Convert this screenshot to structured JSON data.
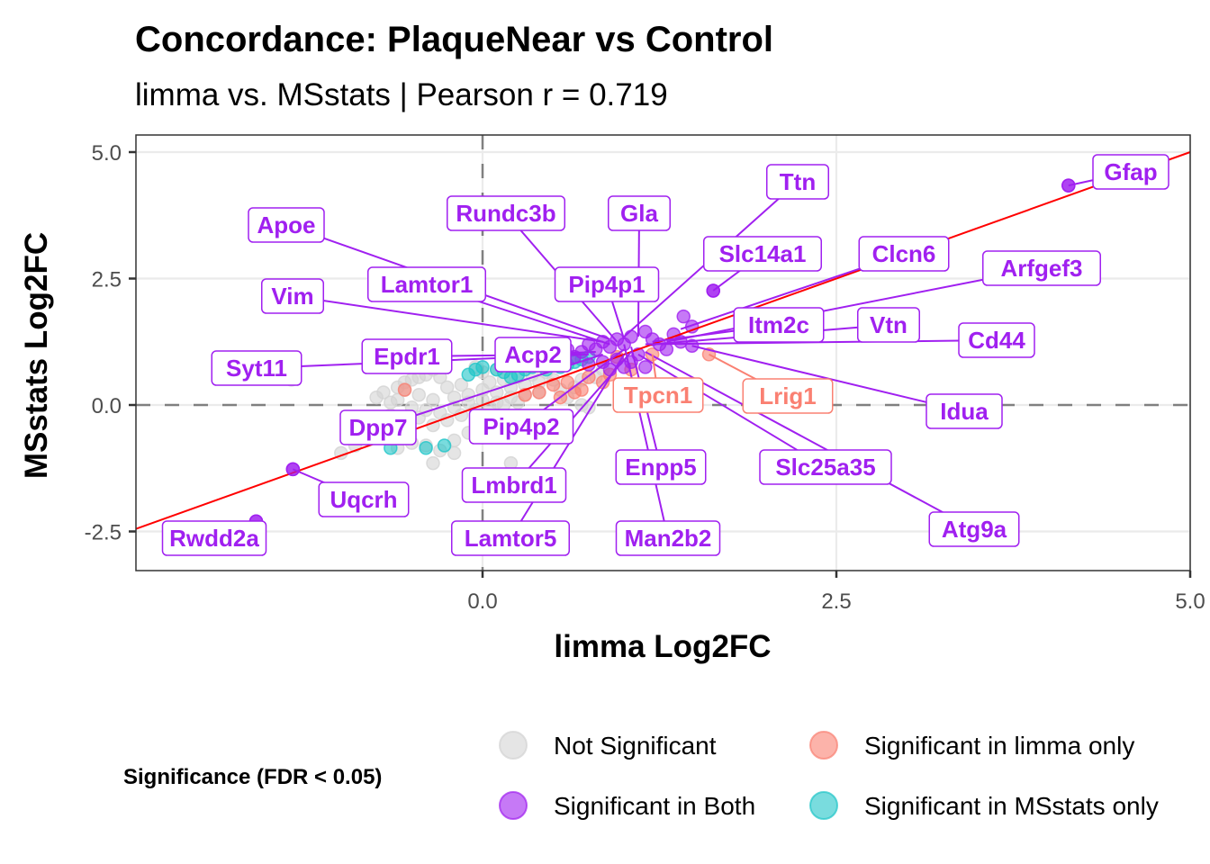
{
  "chart_data": {
    "type": "scatter",
    "title": "Concordance: PlaqueNear vs Control",
    "subtitle": "limma vs. MSstats | Pearson r = 0.719",
    "xlabel": "limma Log2FC",
    "ylabel": "MSstats Log2FC",
    "xlim": [
      -2.45,
      5.0
    ],
    "ylim": [
      -3.27,
      5.33
    ],
    "xticks": [
      0.0,
      2.5,
      5.0
    ],
    "xtick_labels": [
      "0.0",
      "2.5",
      "5.0"
    ],
    "yticks": [
      -2.5,
      0.0,
      2.5,
      5.0
    ],
    "ytick_labels": [
      "-2.5",
      "0.0",
      "2.5",
      "5.0"
    ],
    "grid": true,
    "reference_lines": {
      "hline_y": 0,
      "vline_x": 0,
      "style": "dashed",
      "color": "#808080"
    },
    "fit_line": {
      "slope": 1.0,
      "intercept": 0.0,
      "color": "#ff0000"
    },
    "legend": {
      "title": "Significance (FDR < 0.05)",
      "position": "bottom",
      "entries": [
        {
          "key": "ns",
          "label": "Not Significant",
          "color": "#d3d3d3"
        },
        {
          "key": "limma",
          "label": "Significant in limma only",
          "color": "#fa8072"
        },
        {
          "key": "both",
          "label": "Significant in Both",
          "color": "#a020f0"
        },
        {
          "key": "msstats",
          "label": "Significant in MSstats only",
          "color": "#20c5c8"
        }
      ]
    },
    "series": [
      {
        "name": "Not Significant",
        "key": "ns",
        "points": [
          [
            -0.3,
            0.55
          ],
          [
            -0.55,
            0.3
          ],
          [
            -0.6,
            0.1
          ],
          [
            -0.45,
            0.2
          ],
          [
            -0.35,
            0.1
          ],
          [
            -0.25,
            0.35
          ],
          [
            -0.2,
            0.15
          ],
          [
            -0.15,
            0.4
          ],
          [
            -0.1,
            0.2
          ],
          [
            0.0,
            0.3
          ],
          [
            0.05,
            0.45
          ],
          [
            0.1,
            0.25
          ],
          [
            0.15,
            0.5
          ],
          [
            0.2,
            0.35
          ],
          [
            0.25,
            0.55
          ],
          [
            0.3,
            0.4
          ],
          [
            0.35,
            0.6
          ],
          [
            0.4,
            0.45
          ],
          [
            0.45,
            0.65
          ],
          [
            0.5,
            0.5
          ],
          [
            -0.5,
            -0.05
          ],
          [
            -0.4,
            -0.1
          ],
          [
            -0.3,
            -0.15
          ],
          [
            -0.2,
            -0.05
          ],
          [
            -0.1,
            0.05
          ],
          [
            0.0,
            0.1
          ],
          [
            0.1,
            0.05
          ],
          [
            0.2,
            0.15
          ],
          [
            0.3,
            0.2
          ],
          [
            0.4,
            0.25
          ],
          [
            -0.65,
            -0.2
          ],
          [
            -0.55,
            -0.35
          ],
          [
            -0.45,
            -0.25
          ],
          [
            -0.35,
            -0.4
          ],
          [
            -0.25,
            -0.3
          ],
          [
            -0.15,
            -0.2
          ],
          [
            -0.05,
            -0.1
          ],
          [
            0.05,
            -0.05
          ],
          [
            0.15,
            0.0
          ],
          [
            0.25,
            0.05
          ],
          [
            -0.8,
            -0.5
          ],
          [
            -0.7,
            -0.6
          ],
          [
            -0.5,
            -0.75
          ],
          [
            -0.4,
            -0.8
          ],
          [
            -0.3,
            -0.9
          ],
          [
            -0.2,
            -0.7
          ],
          [
            -0.1,
            -0.55
          ],
          [
            -0.6,
            -0.85
          ],
          [
            -0.9,
            -0.8
          ],
          [
            -1.0,
            -0.95
          ],
          [
            -0.35,
            -1.15
          ],
          [
            0.2,
            -1.15
          ],
          [
            0.7,
            0.0
          ],
          [
            0.75,
            -0.05
          ],
          [
            0.6,
            0.15
          ],
          [
            0.55,
            0.3
          ],
          [
            0.65,
            0.35
          ],
          [
            0.7,
            0.5
          ],
          [
            0.8,
            0.55
          ],
          [
            0.85,
            0.7
          ],
          [
            -0.6,
            0.35
          ],
          [
            -0.55,
            0.45
          ],
          [
            -0.5,
            0.5
          ],
          [
            -0.45,
            0.55
          ],
          [
            -0.4,
            0.6
          ],
          [
            -0.35,
            0.7
          ],
          [
            -0.7,
            0.25
          ],
          [
            -0.75,
            0.15
          ],
          [
            -0.65,
            0.05
          ],
          [
            -0.05,
            0.75
          ],
          [
            0.0,
            0.65
          ],
          [
            0.1,
            0.7
          ],
          [
            0.2,
            0.75
          ],
          [
            0.3,
            0.8
          ],
          [
            0.45,
            0.85
          ],
          [
            0.55,
            0.9
          ],
          [
            0.65,
            0.95
          ],
          [
            -1.35,
            0.5
          ],
          [
            -0.2,
            -0.95
          ],
          [
            -0.6,
            -0.6
          ]
        ]
      },
      {
        "name": "Significant in limma only",
        "key": "limma",
        "points": [
          [
            -0.55,
            0.3
          ],
          [
            0.55,
            0.15
          ],
          [
            0.7,
            0.3
          ],
          [
            0.75,
            0.55
          ],
          [
            0.6,
            0.45
          ],
          [
            0.4,
            0.25
          ],
          [
            1.2,
            1.0
          ],
          [
            1.6,
            1.0
          ],
          [
            0.9,
            0.6
          ],
          [
            0.85,
            0.45
          ],
          [
            0.5,
            0.4
          ],
          [
            0.3,
            0.2
          ],
          [
            1.05,
            0.7
          ],
          [
            0.95,
            0.95
          ],
          [
            0.65,
            0.25
          ]
        ]
      },
      {
        "name": "Significant in MSstats only",
        "key": "msstats",
        "points": [
          [
            -0.65,
            -0.85
          ],
          [
            -0.4,
            -0.85
          ],
          [
            -0.27,
            -0.8
          ],
          [
            -0.05,
            0.7
          ],
          [
            0.0,
            0.75
          ],
          [
            0.1,
            0.7
          ],
          [
            0.15,
            0.65
          ],
          [
            0.25,
            0.6
          ],
          [
            0.35,
            0.75
          ],
          [
            0.4,
            0.8
          ],
          [
            0.45,
            0.7
          ],
          [
            0.55,
            0.75
          ],
          [
            0.6,
            0.8
          ],
          [
            0.65,
            0.85
          ],
          [
            0.7,
            0.9
          ],
          [
            0.75,
            0.95
          ],
          [
            0.2,
            0.55
          ],
          [
            0.3,
            0.7
          ],
          [
            0.5,
            0.85
          ],
          [
            -0.1,
            0.6
          ]
        ]
      },
      {
        "name": "Significant in Both",
        "key": "both",
        "points": [
          [
            4.14,
            4.34
          ],
          [
            1.63,
            2.26
          ],
          [
            1.42,
            1.75
          ],
          [
            1.48,
            1.55
          ],
          [
            1.4,
            1.25
          ],
          [
            1.48,
            1.17
          ],
          [
            1.3,
            1.1
          ],
          [
            1.2,
            1.3
          ],
          [
            1.15,
            1.45
          ],
          [
            1.05,
            1.35
          ],
          [
            1.0,
            1.2
          ],
          [
            0.95,
            1.3
          ],
          [
            0.9,
            1.15
          ],
          [
            0.85,
            1.25
          ],
          [
            0.8,
            1.1
          ],
          [
            0.75,
            1.2
          ],
          [
            0.7,
            1.05
          ],
          [
            0.65,
            0.95
          ],
          [
            0.6,
            1.1
          ],
          [
            0.55,
            1.0
          ],
          [
            1.1,
            1.0
          ],
          [
            1.05,
            0.85
          ],
          [
            0.95,
            0.9
          ],
          [
            0.85,
            0.85
          ],
          [
            0.75,
            0.8
          ],
          [
            1.15,
            0.75
          ],
          [
            1.0,
            0.75
          ],
          [
            0.9,
            0.7
          ],
          [
            1.25,
            1.2
          ],
          [
            1.35,
            1.4
          ],
          [
            -1.34,
            -1.27
          ],
          [
            -1.6,
            -2.3
          ]
        ]
      }
    ],
    "labeled_points": [
      {
        "gene": "Gfap",
        "x": 4.14,
        "y": 4.34,
        "group": "both"
      },
      {
        "gene": "Ttn",
        "x": 1.0,
        "y": 1.35,
        "group": "both"
      },
      {
        "gene": "Slc14a1",
        "x": 1.63,
        "y": 2.26,
        "group": "both"
      },
      {
        "gene": "Clcn6",
        "x": 1.4,
        "y": 1.5,
        "group": "both"
      },
      {
        "gene": "Arfgef3",
        "x": 1.3,
        "y": 1.25,
        "group": "both"
      },
      {
        "gene": "Itm2c",
        "x": 1.2,
        "y": 1.25,
        "group": "both"
      },
      {
        "gene": "Vtn",
        "x": 1.2,
        "y": 1.2,
        "group": "both"
      },
      {
        "gene": "Cd44",
        "x": 1.15,
        "y": 1.2,
        "group": "both"
      },
      {
        "gene": "Idua",
        "x": 1.48,
        "y": 1.17,
        "group": "both"
      },
      {
        "gene": "Slc25a35",
        "x": 1.1,
        "y": 1.0,
        "group": "both"
      },
      {
        "gene": "Atg9a",
        "x": 1.15,
        "y": 1.05,
        "group": "both"
      },
      {
        "gene": "Lrig1",
        "x": 1.6,
        "y": 1.0,
        "group": "limma"
      },
      {
        "gene": "Tpcn1",
        "x": 1.2,
        "y": 1.0,
        "group": "limma"
      },
      {
        "gene": "Enpp5",
        "x": 1.05,
        "y": 1.15,
        "group": "both"
      },
      {
        "gene": "Man2b2",
        "x": 1.0,
        "y": 1.2,
        "group": "both"
      },
      {
        "gene": "Gla",
        "x": 1.1,
        "y": 1.35,
        "group": "both"
      },
      {
        "gene": "Pip4p1",
        "x": 1.0,
        "y": 1.3,
        "group": "both"
      },
      {
        "gene": "Rundc3b",
        "x": 0.95,
        "y": 1.25,
        "group": "both"
      },
      {
        "gene": "Apoe",
        "x": 0.9,
        "y": 1.3,
        "group": "both"
      },
      {
        "gene": "Lamtor1",
        "x": 0.9,
        "y": 1.2,
        "group": "both"
      },
      {
        "gene": "Vim",
        "x": 0.85,
        "y": 1.25,
        "group": "both"
      },
      {
        "gene": "Syt11",
        "x": 0.75,
        "y": 1.0,
        "group": "both"
      },
      {
        "gene": "Epdr1",
        "x": 0.7,
        "y": 1.0,
        "group": "both"
      },
      {
        "gene": "Acp2",
        "x": 0.8,
        "y": 1.05,
        "group": "both"
      },
      {
        "gene": "Dpp7",
        "x": 0.85,
        "y": 1.0,
        "group": "both"
      },
      {
        "gene": "Pip4p2",
        "x": 1.0,
        "y": 1.1,
        "group": "both"
      },
      {
        "gene": "Lmbrd1",
        "x": 1.05,
        "y": 1.05,
        "group": "both"
      },
      {
        "gene": "Lamtor5",
        "x": 1.0,
        "y": 1.0,
        "group": "both"
      },
      {
        "gene": "Uqcrh",
        "x": -1.34,
        "y": -1.27,
        "group": "both"
      },
      {
        "gene": "Rwdd2a",
        "x": -1.6,
        "y": -2.3,
        "group": "both"
      }
    ]
  }
}
